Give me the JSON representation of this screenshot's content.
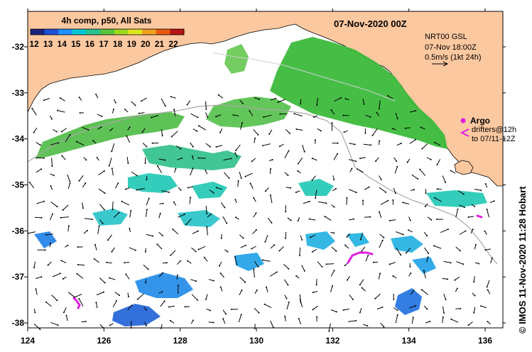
{
  "header": {
    "date_label": "07-Nov-2020 00Z"
  },
  "colorbar": {
    "title": "4h comp, p50, All Sats",
    "ticks": [
      "12",
      "13",
      "14",
      "15",
      "16",
      "17",
      "18",
      "19",
      "20",
      "21",
      "22"
    ],
    "colors": [
      "#1a237e",
      "#1e4fd6",
      "#1e90ff",
      "#00c8d2",
      "#29c48f",
      "#58c43a",
      "#9ed81e",
      "#e0e41e",
      "#f0a020",
      "#e85a14",
      "#b81414"
    ]
  },
  "current_info": {
    "line1": "NRT00 GSL",
    "line2": "07-Nov 18:00Z",
    "line3": "0.5m/s (1kt 24h)"
  },
  "argo": {
    "label": "Argo",
    "drifters_label": "drifters@12h",
    "drifters_to": "to 07/11-12Z",
    "color": "#e01ee0"
  },
  "axes": {
    "lon_ticks": [
      "124",
      "126",
      "128",
      "130",
      "132",
      "134",
      "136"
    ],
    "lat_ticks": [
      "-32",
      "-33",
      "-34",
      "-35",
      "-36",
      "-37",
      "-38"
    ]
  },
  "credit": "©  IMOS 11-Nov-2020 11:28 Hobart",
  "colors": {
    "land": "#fcc8a0",
    "ocean": "#ffffff",
    "shelf_line": "#a8a8a8"
  }
}
